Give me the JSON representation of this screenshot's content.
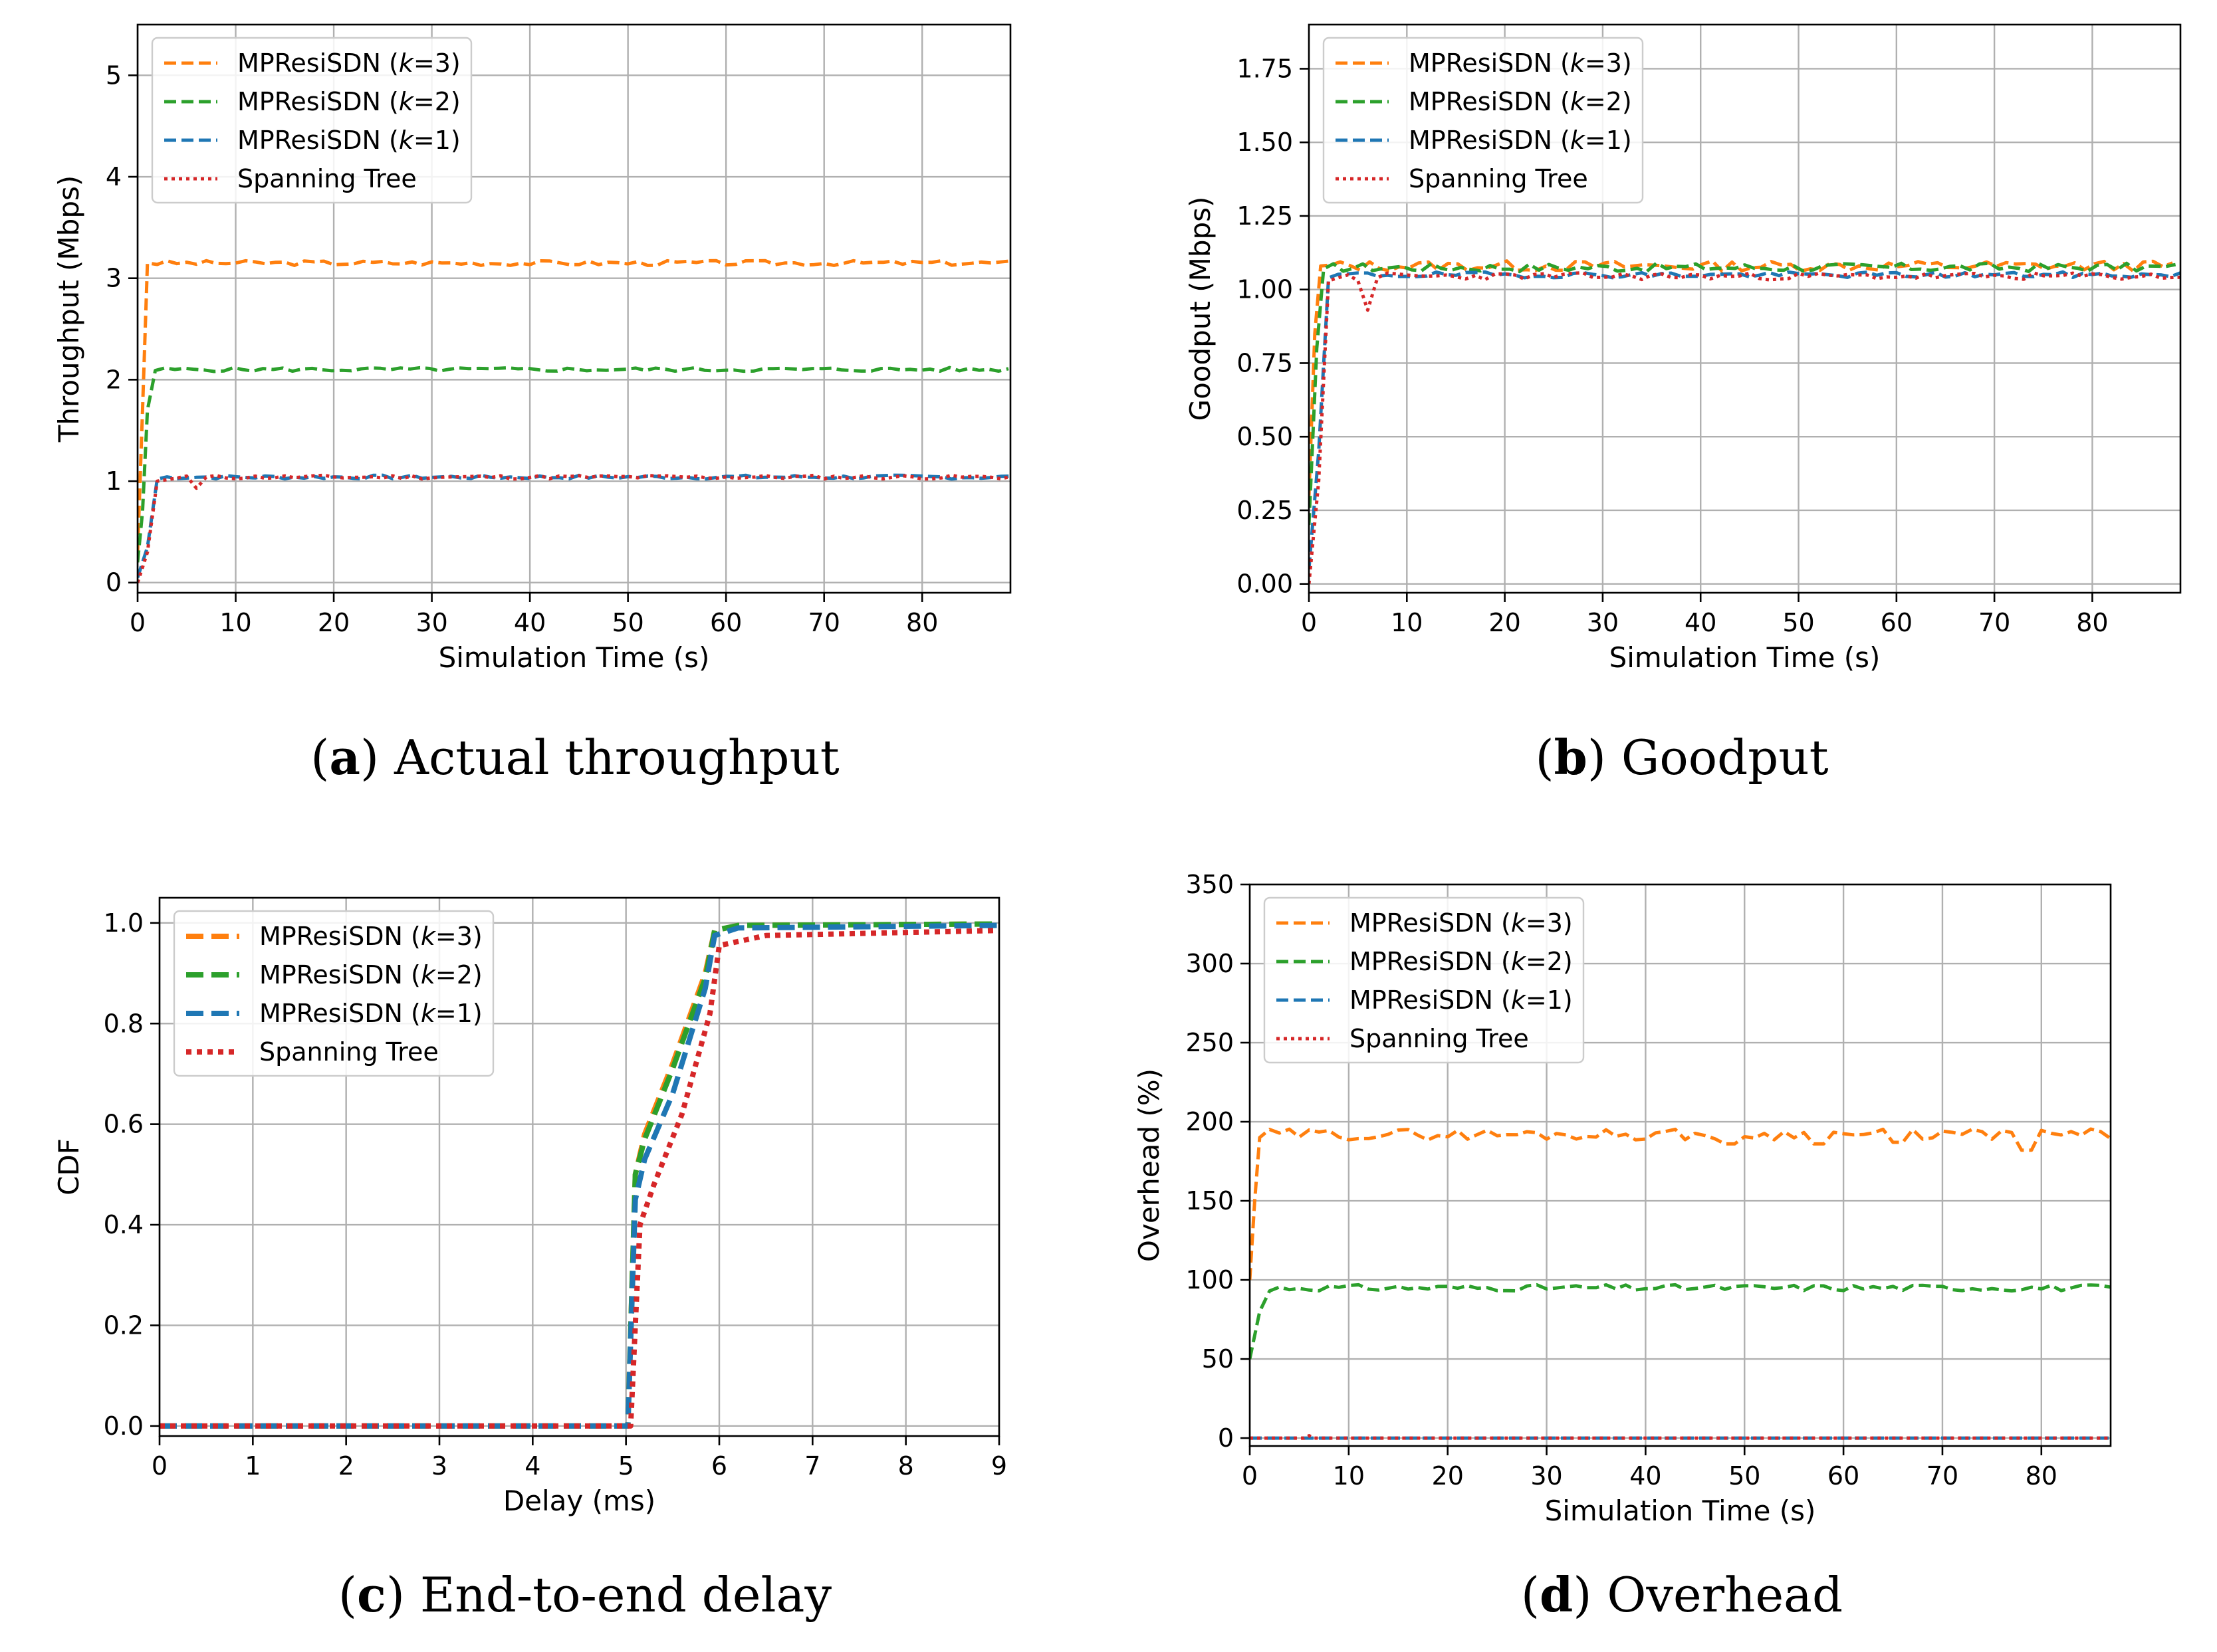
{
  "figure": {
    "colors": {
      "k3": "#ff7f0e",
      "k2": "#2ca02c",
      "k1": "#1f77b4",
      "st": "#d62728"
    }
  },
  "chart_data": [
    {
      "id": "a",
      "type": "line",
      "caption_letter": "a",
      "caption_text": " Actual throughput",
      "xlabel": "Simulation Time (s)",
      "ylabel": "Throughput (Mbps)",
      "xlim": [
        0,
        89
      ],
      "ylim": [
        -0.1,
        5.5
      ],
      "xticks": [
        0,
        10,
        20,
        30,
        40,
        50,
        60,
        70,
        80
      ],
      "yticks": [
        0,
        1,
        2,
        3,
        4,
        5
      ],
      "ytick_labels": [
        "0",
        "1",
        "2",
        "3",
        "4",
        "5"
      ],
      "legend": {
        "position": "top-left",
        "entries": [
          {
            "pre": "MPResiSDN (",
            "k": "k",
            "post": "=3)",
            "series": "k3"
          },
          {
            "pre": "MPResiSDN (",
            "k": "k",
            "post": "=2)",
            "series": "k2"
          },
          {
            "pre": "MPResiSDN (",
            "k": "k",
            "post": "=1)",
            "series": "k1"
          },
          {
            "pre": "Spanning Tree",
            "k": "",
            "post": "",
            "series": "st"
          }
        ]
      },
      "series": [
        {
          "key": "k3",
          "name": "MPResiSDN (k=3)",
          "style": "dashed",
          "start": [
            [
              0,
              0.3
            ],
            [
              0.5,
              1.7
            ],
            [
              1,
              3.15
            ]
          ],
          "base": 3.15,
          "noise": 0.025,
          "seed": 3,
          "end": 89
        },
        {
          "key": "k2",
          "name": "MPResiSDN (k=2)",
          "style": "dashed",
          "start": [
            [
              0,
              0.2
            ],
            [
              0.5,
              0.7
            ],
            [
              1,
              1.7
            ],
            [
              1.8,
              2.09
            ]
          ],
          "base": 2.1,
          "noise": 0.02,
          "seed": 5,
          "end": 89
        },
        {
          "key": "k1",
          "name": "MPResiSDN (k=1)",
          "style": "dashed",
          "start": [
            [
              0,
              0.05
            ],
            [
              1,
              0.35
            ],
            [
              2,
              1.02
            ]
          ],
          "base": 1.04,
          "noise": 0.02,
          "seed": 7,
          "end": 89
        },
        {
          "key": "st",
          "name": "Spanning Tree",
          "style": "dotted",
          "start": [
            [
              0,
              0.0
            ],
            [
              1,
              0.3
            ],
            [
              2,
              1.0
            ],
            [
              4,
              1.03
            ],
            [
              5,
              1.05
            ],
            [
              6,
              0.93
            ],
            [
              7,
              1.04
            ]
          ],
          "base": 1.04,
          "noise": 0.02,
          "seed": 11,
          "end": 89
        }
      ]
    },
    {
      "id": "b",
      "type": "line",
      "caption_letter": "b",
      "caption_text": " Goodput",
      "xlabel": "Simulation Time (s)",
      "ylabel": "Goodput (Mbps)",
      "xlim": [
        0,
        89
      ],
      "ylim": [
        -0.03,
        1.9
      ],
      "xticks": [
        0,
        10,
        20,
        30,
        40,
        50,
        60,
        70,
        80
      ],
      "yticks": [
        0,
        0.25,
        0.5,
        0.75,
        1.0,
        1.25,
        1.5,
        1.75
      ],
      "ytick_labels": [
        "0.00",
        "0.25",
        "0.50",
        "0.75",
        "1.00",
        "1.25",
        "1.50",
        "1.75"
      ],
      "legend": {
        "position": "top-left",
        "entries": [
          {
            "pre": "MPResiSDN (",
            "k": "k",
            "post": "=3)",
            "series": "k3"
          },
          {
            "pre": "MPResiSDN (",
            "k": "k",
            "post": "=2)",
            "series": "k2"
          },
          {
            "pre": "MPResiSDN (",
            "k": "k",
            "post": "=1)",
            "series": "k1"
          },
          {
            "pre": "Spanning Tree",
            "k": "",
            "post": "",
            "series": "st"
          }
        ]
      },
      "series": [
        {
          "key": "k3",
          "name": "MPResiSDN (k=3)",
          "style": "dashed",
          "start": [
            [
              0,
              0.3
            ],
            [
              0.6,
              0.85
            ],
            [
              1.2,
              1.08
            ]
          ],
          "base": 1.08,
          "noise": 0.018,
          "seed": 13,
          "end": 89
        },
        {
          "key": "k2",
          "name": "MPResiSDN (k=2)",
          "style": "dashed",
          "start": [
            [
              0,
              0.2
            ],
            [
              0.8,
              0.8
            ],
            [
              1.5,
              1.07
            ]
          ],
          "base": 1.075,
          "noise": 0.015,
          "seed": 17,
          "end": 89
        },
        {
          "key": "k1",
          "name": "MPResiSDN (k=1)",
          "style": "dashed",
          "start": [
            [
              0,
              0.05
            ],
            [
              1,
              0.45
            ],
            [
              2,
              1.04
            ]
          ],
          "base": 1.05,
          "noise": 0.01,
          "seed": 19,
          "end": 89
        },
        {
          "key": "st",
          "name": "Spanning Tree",
          "style": "dotted",
          "start": [
            [
              0,
              0.0
            ],
            [
              1,
              0.35
            ],
            [
              2,
              1.03
            ],
            [
              4,
              1.05
            ],
            [
              5,
              1.03
            ],
            [
              6,
              0.93
            ],
            [
              7,
              1.04
            ]
          ],
          "base": 1.045,
          "noise": 0.012,
          "seed": 23,
          "end": 89
        }
      ]
    },
    {
      "id": "c",
      "type": "line",
      "caption_letter": "c",
      "caption_text": " End-to-end delay",
      "xlabel": "Delay (ms)",
      "ylabel": "CDF",
      "xlim": [
        0,
        9
      ],
      "ylim": [
        -0.02,
        1.05
      ],
      "xticks": [
        0,
        1,
        2,
        3,
        4,
        5,
        6,
        7,
        8,
        9
      ],
      "yticks": [
        0,
        0.2,
        0.4,
        0.6,
        0.8,
        1.0
      ],
      "ytick_labels": [
        "0.0",
        "0.2",
        "0.4",
        "0.6",
        "0.8",
        "1.0"
      ],
      "legend": {
        "position": "top-left",
        "entries": [
          {
            "pre": "MPResiSDN (",
            "k": "k",
            "post": "=3)",
            "series": "k3"
          },
          {
            "pre": "MPResiSDN (",
            "k": "k",
            "post": "=2)",
            "series": "k2"
          },
          {
            "pre": "MPResiSDN (",
            "k": "k",
            "post": "=1)",
            "series": "k1"
          },
          {
            "pre": "Spanning Tree",
            "k": "",
            "post": "",
            "series": "st"
          }
        ]
      },
      "series": [
        {
          "key": "k3",
          "name": "MPResiSDN (k=3)",
          "style": "dashed-thick",
          "points": [
            [
              0,
              0
            ],
            [
              5.02,
              0
            ],
            [
              5.1,
              0.5
            ],
            [
              5.2,
              0.58
            ],
            [
              5.5,
              0.72
            ],
            [
              5.85,
              0.9
            ],
            [
              5.95,
              0.985
            ],
            [
              6.2,
              0.995
            ],
            [
              9,
              0.998
            ]
          ]
        },
        {
          "key": "k2",
          "name": "MPResiSDN (k=2)",
          "style": "dashed-thick",
          "points": [
            [
              0,
              0
            ],
            [
              5.02,
              0
            ],
            [
              5.1,
              0.5
            ],
            [
              5.2,
              0.57
            ],
            [
              5.5,
              0.71
            ],
            [
              5.85,
              0.89
            ],
            [
              5.95,
              0.985
            ],
            [
              6.2,
              0.995
            ],
            [
              9,
              0.998
            ]
          ]
        },
        {
          "key": "k1",
          "name": "MPResiSDN (k=1)",
          "style": "dashed-thick",
          "points": [
            [
              0,
              0
            ],
            [
              5.02,
              0
            ],
            [
              5.1,
              0.45
            ],
            [
              5.2,
              0.53
            ],
            [
              5.5,
              0.66
            ],
            [
              5.85,
              0.87
            ],
            [
              5.95,
              0.975
            ],
            [
              6.2,
              0.99
            ],
            [
              9,
              0.995
            ]
          ]
        },
        {
          "key": "st",
          "name": "Spanning Tree",
          "style": "dotted-thick",
          "points": [
            [
              0,
              0
            ],
            [
              5.05,
              0
            ],
            [
              5.15,
              0.4
            ],
            [
              5.3,
              0.48
            ],
            [
              5.6,
              0.62
            ],
            [
              5.9,
              0.82
            ],
            [
              6.0,
              0.955
            ],
            [
              6.5,
              0.975
            ],
            [
              9,
              0.985
            ]
          ]
        }
      ]
    },
    {
      "id": "d",
      "type": "line",
      "caption_letter": "d",
      "caption_text": " Overhead",
      "xlabel": "Simulation Time (s)",
      "ylabel": "Overhead (%)",
      "xlim": [
        0,
        87
      ],
      "ylim": [
        -5,
        350
      ],
      "xticks": [
        0,
        10,
        20,
        30,
        40,
        50,
        60,
        70,
        80
      ],
      "yticks": [
        0,
        50,
        100,
        150,
        200,
        250,
        300,
        350
      ],
      "ytick_labels": [
        "0",
        "50",
        "100",
        "150",
        "200",
        "250",
        "300",
        "350"
      ],
      "legend": {
        "position": "top-left",
        "entries": [
          {
            "pre": "MPResiSDN (",
            "k": "k",
            "post": "=3)",
            "series": "k3"
          },
          {
            "pre": "MPResiSDN (",
            "k": "k",
            "post": "=2)",
            "series": "k2"
          },
          {
            "pre": "MPResiSDN (",
            "k": "k",
            "post": "=1)",
            "series": "k1"
          },
          {
            "pre": "Spanning Tree",
            "k": "",
            "post": "",
            "series": "st"
          }
        ]
      },
      "series": [
        {
          "key": "k3",
          "name": "MPResiSDN (k=3)",
          "style": "dashed",
          "start": [
            [
              0,
              100
            ],
            [
              0.5,
              150
            ],
            [
              1,
              190
            ]
          ],
          "base": 192,
          "noise": 3.5,
          "seed": 29,
          "end": 87,
          "dips": [
            [
              48.5,
              186
            ],
            [
              57.5,
              186
            ],
            [
              65.5,
              187
            ],
            [
              78.5,
              182
            ]
          ]
        },
        {
          "key": "k2",
          "name": "MPResiSDN (k=2)",
          "style": "dashed",
          "start": [
            [
              0,
              50
            ],
            [
              1,
              80
            ],
            [
              2,
              93
            ]
          ],
          "base": 95,
          "noise": 2,
          "seed": 31,
          "end": 87
        },
        {
          "key": "k1",
          "name": "MPResiSDN (k=1)",
          "style": "dashed",
          "points": [
            [
              0,
              0
            ],
            [
              87,
              0
            ]
          ]
        },
        {
          "key": "st",
          "name": "Spanning Tree",
          "style": "dotted",
          "points": [
            [
              0,
              0
            ],
            [
              5.5,
              0
            ],
            [
              6,
              1.5
            ],
            [
              6.5,
              0
            ],
            [
              87,
              0
            ]
          ]
        }
      ]
    }
  ]
}
